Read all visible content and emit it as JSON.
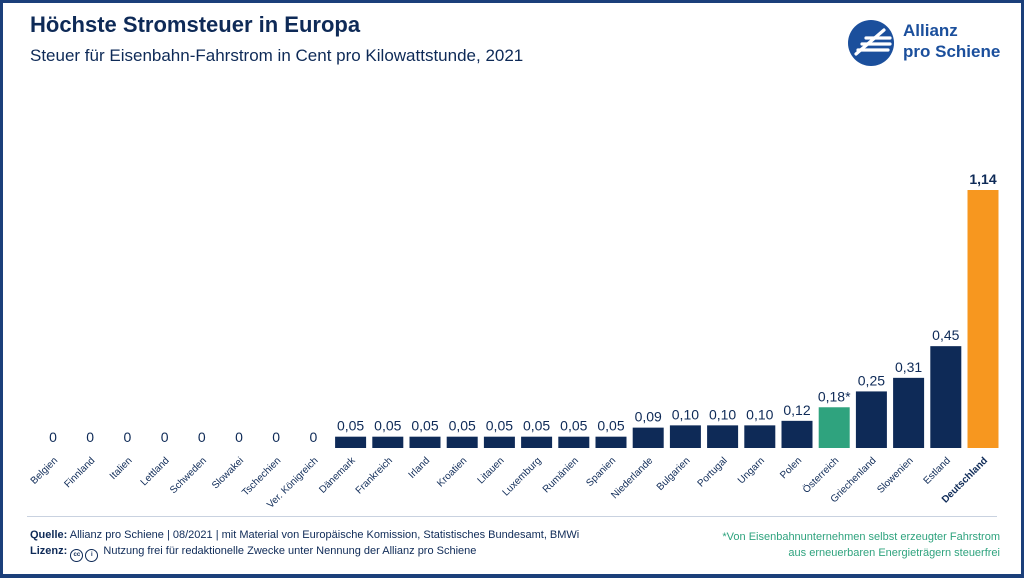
{
  "header": {
    "title": "Höchste Stromsteuer in Europa",
    "subtitle": "Steuer für Eisenbahn-Fahrstrom in Cent pro Kilowattstunde, 2021"
  },
  "logo": {
    "line1": "Allianz",
    "line2": "pro Schiene"
  },
  "footer": {
    "source_label": "Quelle:",
    "source_text": "Allianz pro Schiene | 08/2021 | mit Material von Europäische Komission, Statistisches Bundesamt, BMWi",
    "license_label": "Lizenz:",
    "license_text": "Nutzung frei für redaktionelle Zwecke unter Nennung der Allianz pro Schiene",
    "note_line1": "*Von Eisenbahnunternehmen selbst erzeugter Fahrstrom",
    "note_line2": "aus erneuerbaren Energieträgern steuerfrei"
  },
  "colors": {
    "default_bar": "#0e2a57",
    "highlight_green": "#2fa37e",
    "highlight_orange": "#f7971f",
    "text": "#0e2a57"
  },
  "chart_data": {
    "type": "bar",
    "categories": [
      "Belgien",
      "Finnland",
      "Italien",
      "Lettland",
      "Schweden",
      "Slowakei",
      "Tschechien",
      "Ver. Königreich",
      "Dänemark",
      "Frankreich",
      "Irland",
      "Kroatien",
      "Litauen",
      "Luxemburg",
      "Rumänien",
      "Spanien",
      "Niederlande",
      "Bulgarien",
      "Portugal",
      "Ungarn",
      "Polen",
      "Österreich",
      "Griechenland",
      "Slowenien",
      "Estland",
      "Deutschland"
    ],
    "values": [
      0,
      0,
      0,
      0,
      0,
      0,
      0,
      0,
      0.05,
      0.05,
      0.05,
      0.05,
      0.05,
      0.05,
      0.05,
      0.05,
      0.09,
      0.1,
      0.1,
      0.1,
      0.12,
      0.18,
      0.25,
      0.31,
      0.45,
      1.14
    ],
    "value_labels": [
      "0",
      "0",
      "0",
      "0",
      "0",
      "0",
      "0",
      "0",
      "0,05",
      "0,05",
      "0,05",
      "0,05",
      "0,05",
      "0,05",
      "0,05",
      "0,05",
      "0,09",
      "0,10",
      "0,10",
      "0,10",
      "0,12",
      "0,18*",
      "0,25",
      "0,31",
      "0,45",
      "1,14"
    ],
    "highlights": {
      "Österreich": "green",
      "Deutschland": "orange"
    },
    "bold_categories": [
      "Deutschland"
    ],
    "ylim": [
      0,
      1.14
    ],
    "grid": false,
    "legend": false
  }
}
